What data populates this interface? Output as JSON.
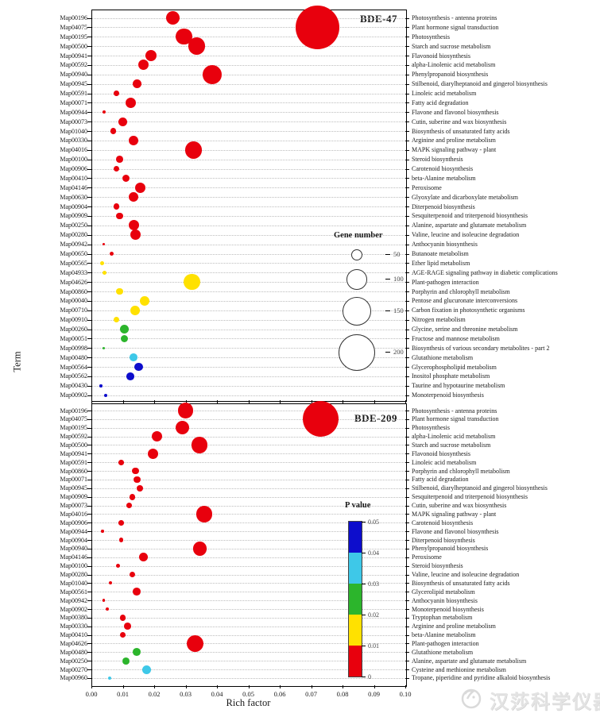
{
  "figure": {
    "x_axis": {
      "label": "Rich factor",
      "min": 0.0,
      "max": 0.1,
      "ticks": [
        "0.00",
        "0.01",
        "0.02",
        "0.03",
        "0.04",
        "0.05",
        "0.06",
        "0.07",
        "0.08",
        "0.09",
        "0.10"
      ]
    },
    "y_axis": {
      "label": "Term"
    },
    "palette": {
      "red": "#e8000d",
      "yellow": "#ffe100",
      "green": "#2cb52c",
      "cyan": "#3ec8e8",
      "blue": "#0d0dcc"
    },
    "legend_gene_number": {
      "title": "Gene number",
      "sizes": [
        50,
        100,
        150,
        200
      ]
    },
    "legend_p_value": {
      "title": "P value",
      "tick_labels_top_to_bottom": [
        "0.05",
        "0.04",
        "0.03",
        "0.02",
        "0.01",
        "0"
      ],
      "segments_top_to_bottom": [
        "blue",
        "cyan",
        "green",
        "yellow",
        "red"
      ]
    },
    "watermark": {
      "text": "汉莎科学仪器"
    }
  },
  "chart_data": {
    "type": "scatter",
    "description": "KEGG pathway enrichment bubble plot; two stacked panels sharing the Rich factor x-axis. Bubble size = gene number, bubble color = P value bin.",
    "panels": [
      {
        "title": "BDE-47",
        "points": [
          {
            "map": "Map00196",
            "pathway": "Photosynthesis - antenna proteins",
            "rich_factor": 0.026,
            "gene_number": 70,
            "p_color": "red"
          },
          {
            "map": "Map04075",
            "pathway": "Plant hormone signal transduction",
            "rich_factor": 0.072,
            "gene_number": 245,
            "p_color": "red"
          },
          {
            "map": "Map00195",
            "pathway": "Photosynthesis",
            "rich_factor": 0.0295,
            "gene_number": 85,
            "p_color": "red"
          },
          {
            "map": "Map00500",
            "pathway": "Starch and sucrose metabolism",
            "rich_factor": 0.0335,
            "gene_number": 90,
            "p_color": "red"
          },
          {
            "map": "Map00941",
            "pathway": "Flavonoid biosynthesis",
            "rich_factor": 0.019,
            "gene_number": 55,
            "p_color": "red"
          },
          {
            "map": "Map00592",
            "pathway": "alpha-Linolenic acid metabolism",
            "rich_factor": 0.0165,
            "gene_number": 50,
            "p_color": "red"
          },
          {
            "map": "Map00940",
            "pathway": "Phenylpropanoid biosynthesis",
            "rich_factor": 0.0385,
            "gene_number": 100,
            "p_color": "red"
          },
          {
            "map": "Map00945",
            "pathway": "Stilbenoid, diarylheptanoid and gingerol biosynthesis",
            "rich_factor": 0.0145,
            "gene_number": 40,
            "p_color": "red"
          },
          {
            "map": "Map00591",
            "pathway": "Linoleic acid metabolism",
            "rich_factor": 0.008,
            "gene_number": 20,
            "p_color": "red"
          },
          {
            "map": "Map00071",
            "pathway": "Fatty acid degradation",
            "rich_factor": 0.0125,
            "gene_number": 50,
            "p_color": "red"
          },
          {
            "map": "Map00944",
            "pathway": "Flavone and flavonol biosynthesis",
            "rich_factor": 0.004,
            "gene_number": 8,
            "p_color": "red"
          },
          {
            "map": "Map00073",
            "pathway": "Cutin, suberine and wax biosynthesis",
            "rich_factor": 0.01,
            "gene_number": 40,
            "p_color": "red"
          },
          {
            "map": "Map01040",
            "pathway": "Biosynthesis of unsaturated fatty acids",
            "rich_factor": 0.007,
            "gene_number": 25,
            "p_color": "red"
          },
          {
            "map": "Map00330",
            "pathway": "Arginine and proline metabolism",
            "rich_factor": 0.0135,
            "gene_number": 45,
            "p_color": "red"
          },
          {
            "map": "Map04016",
            "pathway": "MAPK signaling pathway - plant",
            "rich_factor": 0.0325,
            "gene_number": 90,
            "p_color": "red"
          },
          {
            "map": "Map00100",
            "pathway": "Steroid biosynthesis",
            "rich_factor": 0.009,
            "gene_number": 30,
            "p_color": "red"
          },
          {
            "map": "Map00906",
            "pathway": "Carotenoid biosynthesis",
            "rich_factor": 0.008,
            "gene_number": 25,
            "p_color": "red"
          },
          {
            "map": "Map00410",
            "pathway": "beta-Alanine metabolism",
            "rich_factor": 0.011,
            "gene_number": 35,
            "p_color": "red"
          },
          {
            "map": "Map04146",
            "pathway": "Peroxisome",
            "rich_factor": 0.0155,
            "gene_number": 50,
            "p_color": "red"
          },
          {
            "map": "Map00630",
            "pathway": "Glyoxylate and dicarboxylate metabolism",
            "rich_factor": 0.0135,
            "gene_number": 45,
            "p_color": "red"
          },
          {
            "map": "Map00904",
            "pathway": "Diterpenoid biosynthesis",
            "rich_factor": 0.008,
            "gene_number": 25,
            "p_color": "red"
          },
          {
            "map": "Map00909",
            "pathway": "Sesquiterpenoid and triterpenoid biosynthesis",
            "rich_factor": 0.009,
            "gene_number": 30,
            "p_color": "red"
          },
          {
            "map": "Map00250",
            "pathway": "Alanine, aspartate and glutamate metabolism",
            "rich_factor": 0.0135,
            "gene_number": 50,
            "p_color": "red"
          },
          {
            "map": "Map00280",
            "pathway": "Valine, leucine and isoleucine degradation",
            "rich_factor": 0.014,
            "gene_number": 50,
            "p_color": "red"
          },
          {
            "map": "Map00942",
            "pathway": "Anthocyanin biosynthesis",
            "rich_factor": 0.004,
            "gene_number": 5,
            "p_color": "red"
          },
          {
            "map": "Map00650",
            "pathway": "Butanoate metabolism",
            "rich_factor": 0.0065,
            "gene_number": 15,
            "p_color": "red"
          },
          {
            "map": "Map00565",
            "pathway": "Ether lipid metabolism",
            "rich_factor": 0.0035,
            "gene_number": 12,
            "p_color": "yellow"
          },
          {
            "map": "Map04933",
            "pathway": "AGE-RAGE signaling pathway in diabetic complications",
            "rich_factor": 0.0042,
            "gene_number": 12,
            "p_color": "yellow"
          },
          {
            "map": "Map04626",
            "pathway": "Plant-pathogen interaction",
            "rich_factor": 0.032,
            "gene_number": 85,
            "p_color": "yellow"
          },
          {
            "map": "Map00860",
            "pathway": "Porphyrin and chlorophyll metabolism",
            "rich_factor": 0.009,
            "gene_number": 30,
            "p_color": "yellow"
          },
          {
            "map": "Map00040",
            "pathway": "Pentose and glucuronate interconversions",
            "rich_factor": 0.017,
            "gene_number": 45,
            "p_color": "yellow"
          },
          {
            "map": "Map00710",
            "pathway": "Carbon fixation in photosynthetic organisms",
            "rich_factor": 0.014,
            "gene_number": 45,
            "p_color": "yellow"
          },
          {
            "map": "Map00910",
            "pathway": "Nitrogen metabolism",
            "rich_factor": 0.008,
            "gene_number": 25,
            "p_color": "yellow"
          },
          {
            "map": "Map00260",
            "pathway": "Glycine, serine and threonine metabolism",
            "rich_factor": 0.0105,
            "gene_number": 40,
            "p_color": "green"
          },
          {
            "map": "Map00051",
            "pathway": "Fructose and mannose metabolism",
            "rich_factor": 0.0105,
            "gene_number": 35,
            "p_color": "green"
          },
          {
            "map": "Map00998",
            "pathway": "Biosynthesis of various secondary metabolites - part 2",
            "rich_factor": 0.004,
            "gene_number": 5,
            "p_color": "green"
          },
          {
            "map": "Map00480",
            "pathway": "Glutathione metabolism",
            "rich_factor": 0.0135,
            "gene_number": 35,
            "p_color": "cyan"
          },
          {
            "map": "Map00564",
            "pathway": "Glycerophospholipid metabolism",
            "rich_factor": 0.015,
            "gene_number": 40,
            "p_color": "blue"
          },
          {
            "map": "Map00562",
            "pathway": "Inositol phosphate metabolism",
            "rich_factor": 0.0125,
            "gene_number": 35,
            "p_color": "blue"
          },
          {
            "map": "Map00430",
            "pathway": "Taurine and hypotaurine metabolism",
            "rich_factor": 0.003,
            "gene_number": 5,
            "p_color": "blue"
          },
          {
            "map": "Map00902",
            "pathway": "Monoterpenoid biosynthesis",
            "rich_factor": 0.0045,
            "gene_number": 8,
            "p_color": "blue"
          }
        ]
      },
      {
        "title": "BDE-209",
        "points": [
          {
            "map": "Map00196",
            "pathway": "Photosynthesis - antenna proteins",
            "rich_factor": 0.03,
            "gene_number": 80,
            "p_color": "red"
          },
          {
            "map": "Map04075",
            "pathway": "Plant hormone signal transduction",
            "rich_factor": 0.073,
            "gene_number": 200,
            "p_color": "red"
          },
          {
            "map": "Map00195",
            "pathway": "Photosynthesis",
            "rich_factor": 0.029,
            "gene_number": 70,
            "p_color": "red"
          },
          {
            "map": "Map00592",
            "pathway": "alpha-Linolenic acid metabolism",
            "rich_factor": 0.021,
            "gene_number": 50,
            "p_color": "red"
          },
          {
            "map": "Map00500",
            "pathway": "Starch and sucrose metabolism",
            "rich_factor": 0.0345,
            "gene_number": 85,
            "p_color": "red"
          },
          {
            "map": "Map00941",
            "pathway": "Flavonoid biosynthesis",
            "rich_factor": 0.0195,
            "gene_number": 50,
            "p_color": "red"
          },
          {
            "map": "Map00591",
            "pathway": "Linoleic acid metabolism",
            "rich_factor": 0.0095,
            "gene_number": 20,
            "p_color": "red"
          },
          {
            "map": "Map00860",
            "pathway": "Porphyrin and chlorophyll metabolism",
            "rich_factor": 0.014,
            "gene_number": 30,
            "p_color": "red"
          },
          {
            "map": "Map00071",
            "pathway": "Fatty acid degradation",
            "rich_factor": 0.0145,
            "gene_number": 30,
            "p_color": "red"
          },
          {
            "map": "Map00945",
            "pathway": "Stilbenoid, diarylheptanoid and gingerol biosynthesis",
            "rich_factor": 0.0155,
            "gene_number": 25,
            "p_color": "red"
          },
          {
            "map": "Map00909",
            "pathway": "Sesquiterpenoid and triterpenoid biosynthesis",
            "rich_factor": 0.013,
            "gene_number": 25,
            "p_color": "red"
          },
          {
            "map": "Map00073",
            "pathway": "Cutin, suberine and wax biosynthesis",
            "rich_factor": 0.012,
            "gene_number": 25,
            "p_color": "red"
          },
          {
            "map": "Map04016",
            "pathway": "MAPK signaling pathway - plant",
            "rich_factor": 0.036,
            "gene_number": 85,
            "p_color": "red"
          },
          {
            "map": "Map00906",
            "pathway": "Carotenoid biosynthesis",
            "rich_factor": 0.0095,
            "gene_number": 20,
            "p_color": "red"
          },
          {
            "map": "Map00944",
            "pathway": "Flavone and flavonol biosynthesis",
            "rich_factor": 0.0035,
            "gene_number": 5,
            "p_color": "red"
          },
          {
            "map": "Map00904",
            "pathway": "Diterpenoid biosynthesis",
            "rich_factor": 0.0095,
            "gene_number": 15,
            "p_color": "red"
          },
          {
            "map": "Map00940",
            "pathway": "Phenylpropanoid biosynthesis",
            "rich_factor": 0.0345,
            "gene_number": 70,
            "p_color": "red"
          },
          {
            "map": "Map04146",
            "pathway": "Peroxisome",
            "rich_factor": 0.0165,
            "gene_number": 40,
            "p_color": "red"
          },
          {
            "map": "Map00100",
            "pathway": "Steroid biosynthesis",
            "rich_factor": 0.0085,
            "gene_number": 15,
            "p_color": "red"
          },
          {
            "map": "Map00280",
            "pathway": "Valine, leucine and isoleucine degradation",
            "rich_factor": 0.013,
            "gene_number": 25,
            "p_color": "red"
          },
          {
            "map": "Map01040",
            "pathway": "Biosynthesis of unsaturated fatty acids",
            "rich_factor": 0.006,
            "gene_number": 8,
            "p_color": "red"
          },
          {
            "map": "Map00561",
            "pathway": "Glycerolipid metabolism",
            "rich_factor": 0.0145,
            "gene_number": 35,
            "p_color": "red"
          },
          {
            "map": "Map00942",
            "pathway": "Anthocyanin biosynthesis",
            "rich_factor": 0.004,
            "gene_number": 5,
            "p_color": "red"
          },
          {
            "map": "Map00902",
            "pathway": "Monoterpenoid biosynthesis",
            "rich_factor": 0.005,
            "gene_number": 8,
            "p_color": "red"
          },
          {
            "map": "Map00380",
            "pathway": "Tryptophan metabolism",
            "rich_factor": 0.01,
            "gene_number": 25,
            "p_color": "red"
          },
          {
            "map": "Map00330",
            "pathway": "Arginine and proline metabolism",
            "rich_factor": 0.0115,
            "gene_number": 30,
            "p_color": "red"
          },
          {
            "map": "Map00410",
            "pathway": "beta-Alanine metabolism",
            "rich_factor": 0.01,
            "gene_number": 25,
            "p_color": "red"
          },
          {
            "map": "Map04626",
            "pathway": "Plant-pathogen interaction",
            "rich_factor": 0.033,
            "gene_number": 90,
            "p_color": "red"
          },
          {
            "map": "Map00480",
            "pathway": "Glutathione metabolism",
            "rich_factor": 0.0145,
            "gene_number": 35,
            "p_color": "green"
          },
          {
            "map": "Map00250",
            "pathway": "Alanine, aspartate and glutamate metabolism",
            "rich_factor": 0.011,
            "gene_number": 30,
            "p_color": "green"
          },
          {
            "map": "Map00270",
            "pathway": "Cysteine and methionine metabolism",
            "rich_factor": 0.0175,
            "gene_number": 40,
            "p_color": "cyan"
          },
          {
            "map": "Map00960",
            "pathway": "Tropane, piperidine and pyridine alkaloid biosynthesis",
            "rich_factor": 0.0058,
            "gene_number": 8,
            "p_color": "cyan"
          }
        ]
      }
    ],
    "xlabel": "Rich factor",
    "ylabel": "Term",
    "xlim": [
      0.0,
      0.1
    ],
    "grid": "dotted-horizontal",
    "legend_position": "inside-right-of-each-panel"
  }
}
